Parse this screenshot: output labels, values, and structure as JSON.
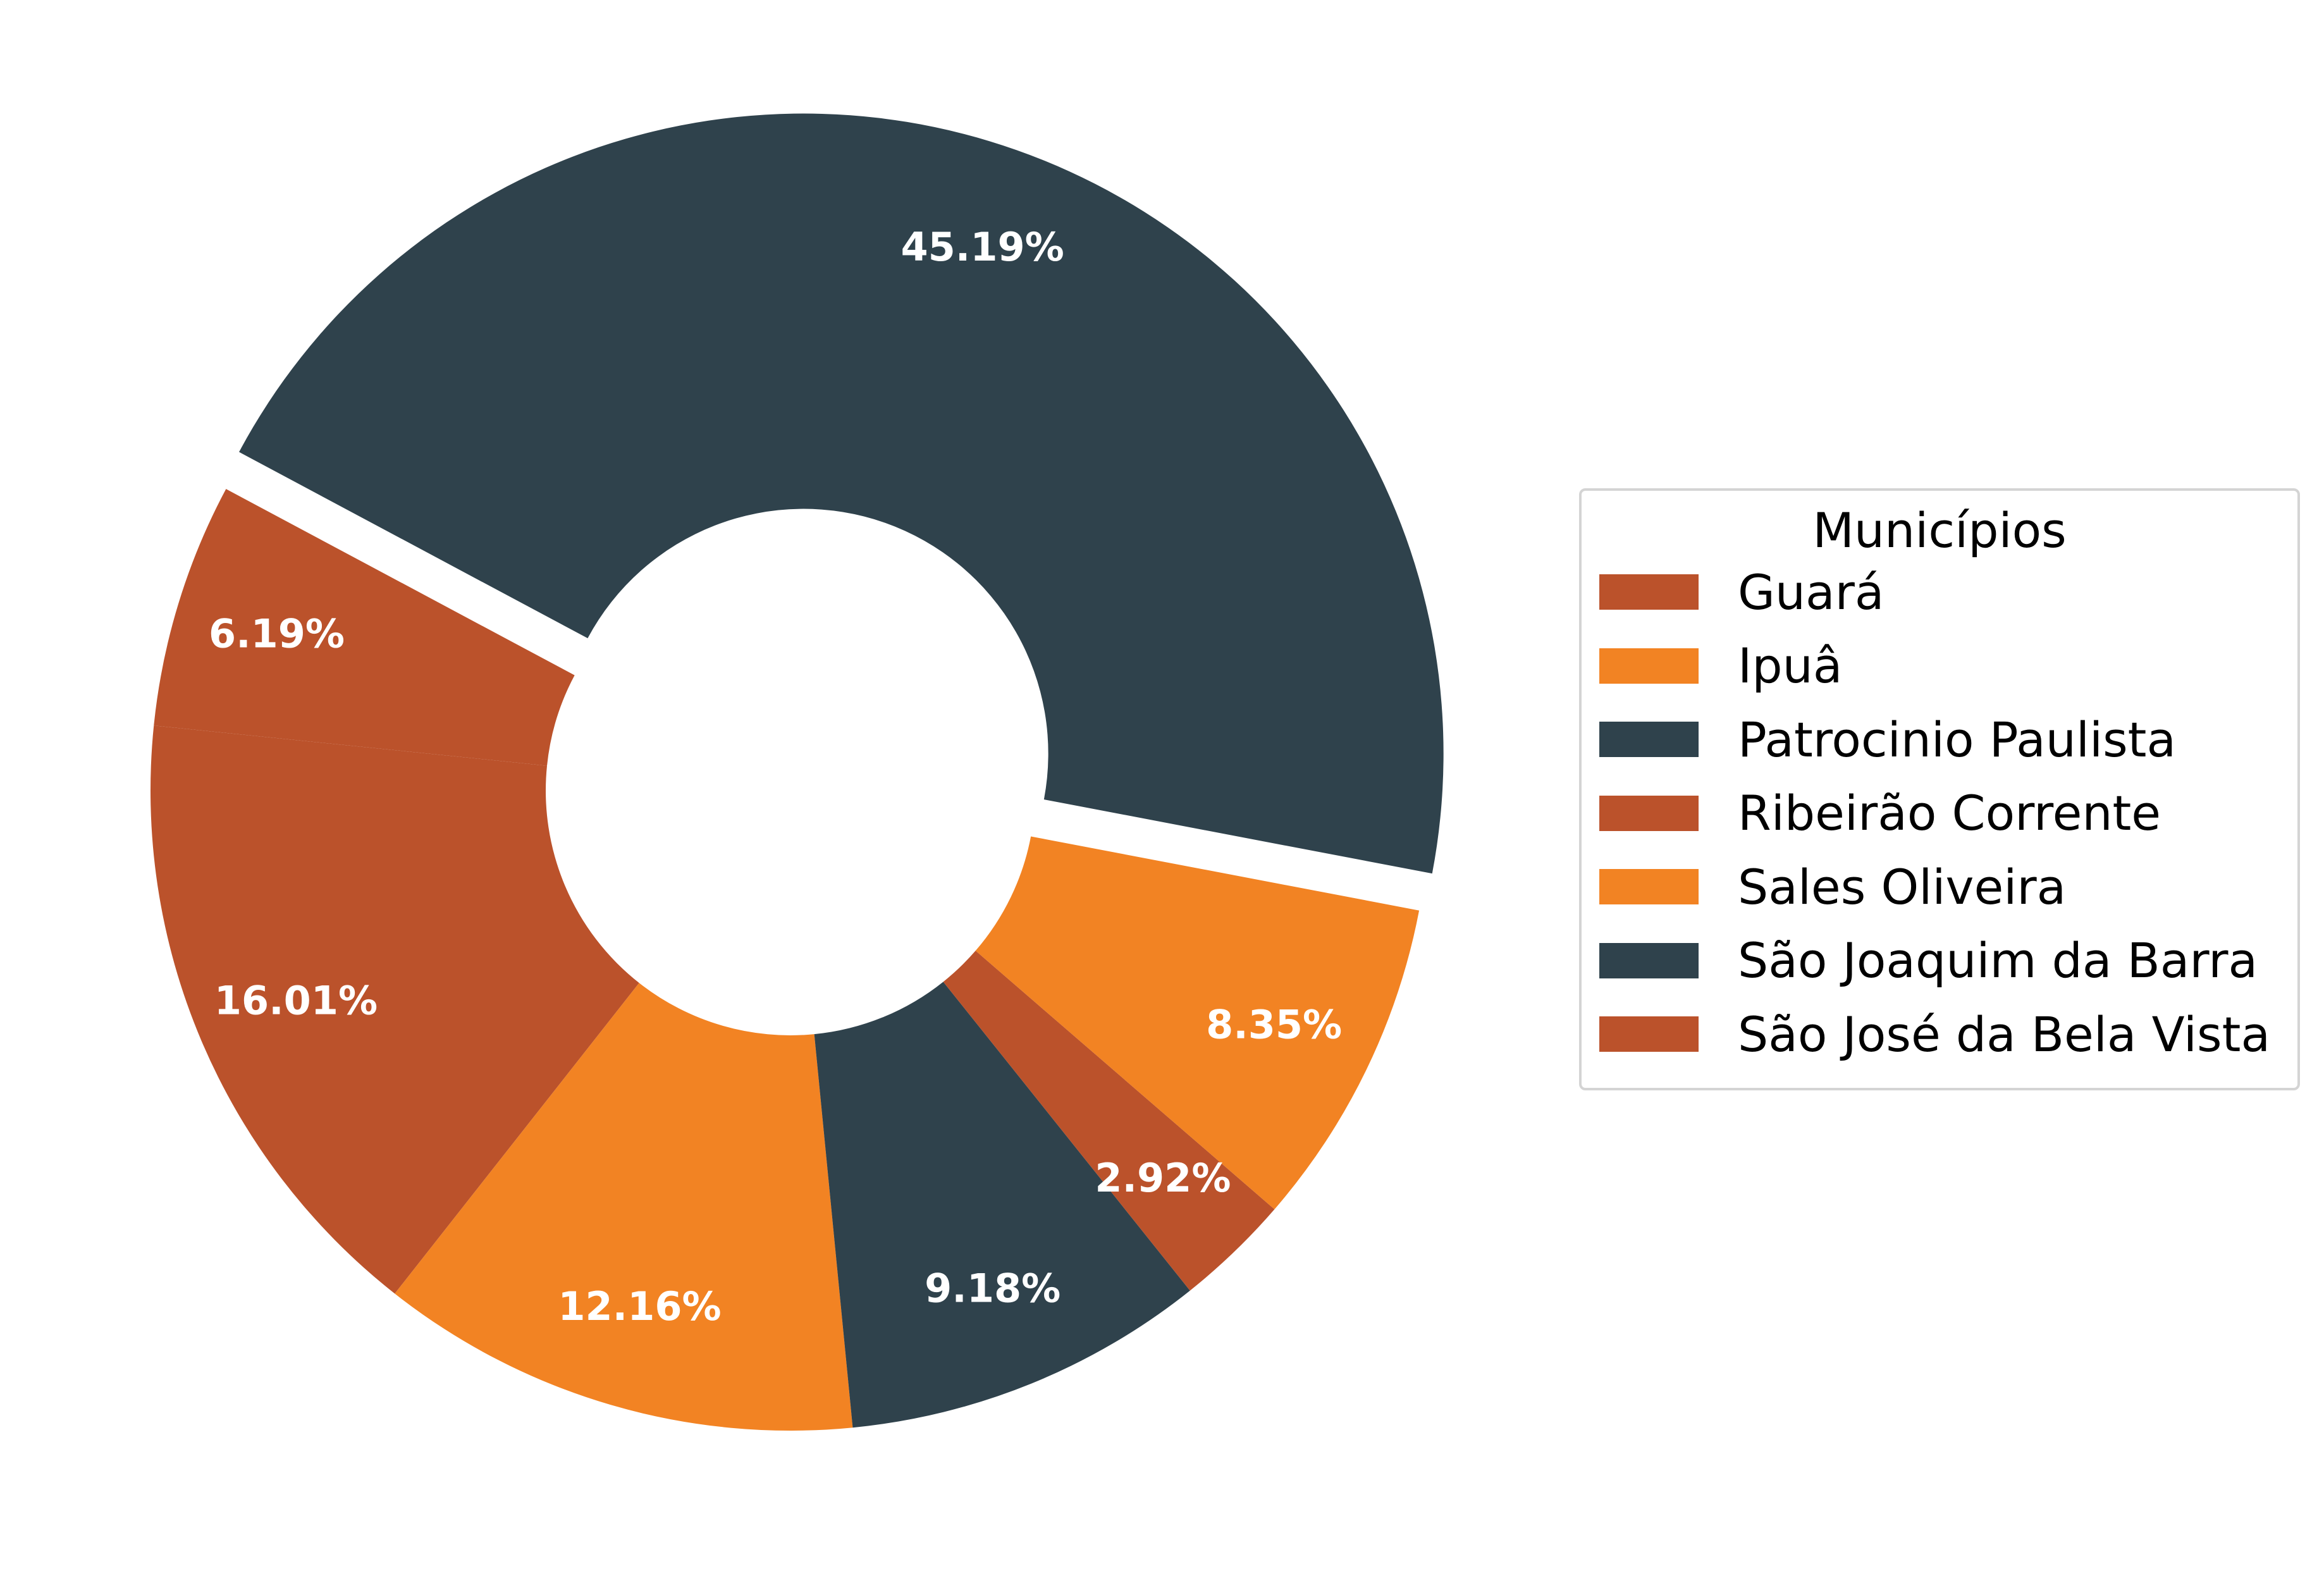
{
  "chart_data": {
    "type": "pie",
    "style": "donut",
    "categories": [
      "Guará",
      "Ipuâ",
      "Patrocinio Paulista",
      "Ribeirão Corrente",
      "Sales Oliveira",
      "São Joaquim da Barra",
      "São José da Bela Vista"
    ],
    "values": [
      16.01,
      12.16,
      9.18,
      2.92,
      8.35,
      45.19,
      6.19
    ],
    "labels": [
      "16.01%",
      "12.16%",
      "9.18%",
      "2.92%",
      "8.35%",
      "45.19%",
      "6.19%"
    ],
    "colors": [
      "#bb522b",
      "#f28323",
      "#2f424c",
      "#bb522b",
      "#f28323",
      "#2f424c",
      "#bb522b"
    ],
    "exploded": [
      "São Joaquim da Barra"
    ],
    "legend": {
      "title": "Municípios",
      "placement": "right"
    }
  }
}
